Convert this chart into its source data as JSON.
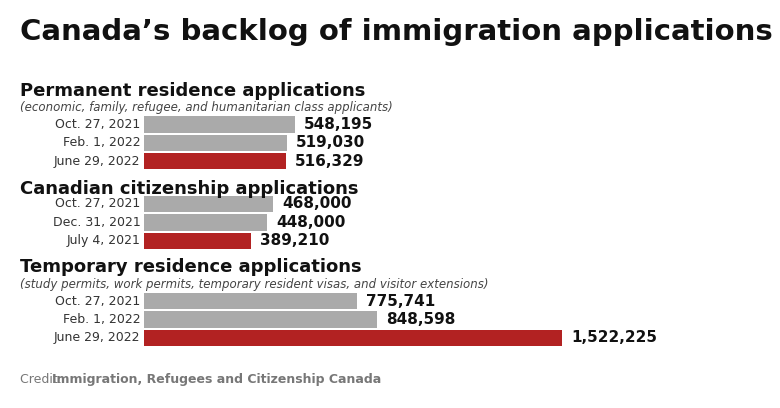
{
  "title": "Canada’s backlog of immigration applications",
  "background_color": "#ffffff",
  "credit_prefix": "Credit: ",
  "credit_bold": "Immigration, Refugees and Citizenship Canada",
  "sections": [
    {
      "title": "Permanent residence applications",
      "subtitle": "(economic, family, refugee, and humanitarian class applicants)",
      "bars": [
        {
          "label": "Oct. 27, 2021",
          "value": 548195,
          "display": "548,195",
          "color": "#aaaaaa"
        },
        {
          "label": "Feb. 1, 2022",
          "value": 519030,
          "display": "519,030",
          "color": "#aaaaaa"
        },
        {
          "label": "June 29, 2022",
          "value": 516329,
          "display": "516,329",
          "color": "#b22222"
        }
      ]
    },
    {
      "title": "Canadian citizenship applications",
      "subtitle": "",
      "bars": [
        {
          "label": "Oct. 27, 2021",
          "value": 468000,
          "display": "468,000",
          "color": "#aaaaaa"
        },
        {
          "label": "Dec. 31, 2021",
          "value": 448000,
          "display": "448,000",
          "color": "#aaaaaa"
        },
        {
          "label": "July 4, 2021",
          "value": 389210,
          "display": "389,210",
          "color": "#b22222"
        }
      ]
    },
    {
      "title": "Temporary residence applications",
      "subtitle": "(study permits, work permits, temporary resident visas, and visitor extensions)",
      "bars": [
        {
          "label": "Oct. 27, 2021",
          "value": 775741,
          "display": "775,741",
          "color": "#aaaaaa"
        },
        {
          "label": "Feb. 1, 2022",
          "value": 848598,
          "display": "848,598",
          "color": "#aaaaaa"
        },
        {
          "label": "June 29, 2022",
          "value": 1522225,
          "display": "1,522,225",
          "color": "#b22222"
        }
      ]
    }
  ],
  "max_value": 1522225,
  "title_fontsize": 21,
  "section_title_fontsize": 13,
  "subtitle_fontsize": 8.5,
  "label_fontsize": 9,
  "value_fontsize": 11,
  "credit_fontsize": 9,
  "bar_color_gray": "#aaaaaa",
  "bar_color_red": "#b22222",
  "text_color": "#111111",
  "label_color": "#333333",
  "subtitle_color": "#444444",
  "credit_color": "#777777"
}
